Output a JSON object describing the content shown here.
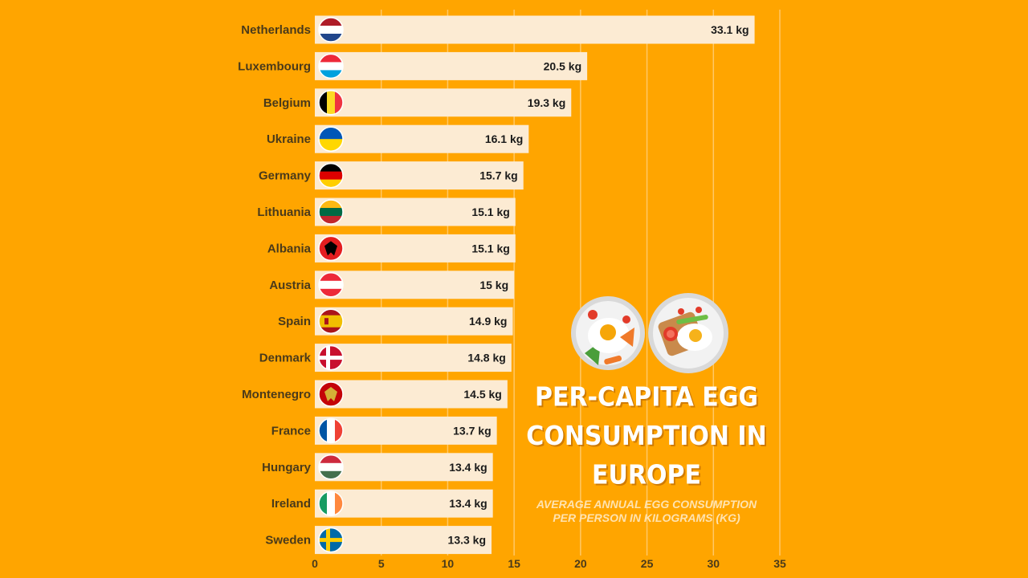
{
  "chart_data": {
    "type": "bar",
    "orientation": "horizontal",
    "title": "PER-CAPITA EGG CONSUMPTION IN EUROPE",
    "subtitle": "AVERAGE ANNUAL EGG CONSUMPTION PER PERSON IN KILOGRAMS (KG)",
    "categories": [
      "Netherlands",
      "Luxembourg",
      "Belgium",
      "Ukraine",
      "Germany",
      "Lithuania",
      "Albania",
      "Austria",
      "Spain",
      "Denmark",
      "Montenegro",
      "France",
      "Hungary",
      "Ireland",
      "Sweden"
    ],
    "values": [
      33.1,
      20.5,
      19.3,
      16.1,
      15.7,
      15.1,
      15.1,
      15,
      14.9,
      14.8,
      14.5,
      13.7,
      13.4,
      13.4,
      13.3
    ],
    "value_labels": [
      "33.1 kg",
      "20.5 kg",
      "19.3 kg",
      "16.1 kg",
      "15.7 kg",
      "15.1 kg",
      "15.1 kg",
      "15 kg",
      "14.9 kg",
      "14.8 kg",
      "14.5 kg",
      "13.7 kg",
      "13.4 kg",
      "13.4 kg",
      "13.3 kg"
    ],
    "xlim": [
      0,
      35
    ],
    "xticks": [
      0,
      5,
      10,
      15,
      20,
      25,
      30,
      35
    ],
    "xtick_labels": [
      "0",
      "5",
      "10",
      "15",
      "20",
      "25",
      "30",
      "35"
    ],
    "grid": true,
    "legend": "none"
  },
  "colors": {
    "background": "#FFA500",
    "bar": "#FCEBD3",
    "grid": "#FFC766"
  },
  "flags": [
    {
      "country": "Netherlands",
      "icon": "netherlands-flag-icon",
      "type": "h",
      "colors": [
        "#AE1C28",
        "#FFFFFF",
        "#21468B"
      ]
    },
    {
      "country": "Luxembourg",
      "icon": "luxembourg-flag-icon",
      "type": "h",
      "colors": [
        "#ED2939",
        "#FFFFFF",
        "#00A1DE"
      ]
    },
    {
      "country": "Belgium",
      "icon": "belgium-flag-icon",
      "type": "v",
      "colors": [
        "#000000",
        "#FDDA24",
        "#EF3340"
      ]
    },
    {
      "country": "Ukraine",
      "icon": "ukraine-flag-icon",
      "type": "h",
      "colors": [
        "#0057B7",
        "#FFD700"
      ]
    },
    {
      "country": "Germany",
      "icon": "germany-flag-icon",
      "type": "h",
      "colors": [
        "#000000",
        "#DD0000",
        "#FFCE00"
      ]
    },
    {
      "country": "Lithuania",
      "icon": "lithuania-flag-icon",
      "type": "h",
      "colors": [
        "#FDB913",
        "#006A44",
        "#C1272D"
      ]
    },
    {
      "country": "Albania",
      "icon": "albania-flag-icon",
      "type": "emblem",
      "colors": [
        "#E41E20",
        "#000000"
      ]
    },
    {
      "country": "Austria",
      "icon": "austria-flag-icon",
      "type": "h",
      "colors": [
        "#ED2939",
        "#FFFFFF",
        "#ED2939"
      ]
    },
    {
      "country": "Spain",
      "icon": "spain-flag-icon",
      "type": "h121",
      "colors": [
        "#AA151B",
        "#F1BF00",
        "#AA151B"
      ]
    },
    {
      "country": "Denmark",
      "icon": "denmark-flag-icon",
      "type": "cross",
      "colors": [
        "#C8102E",
        "#FFFFFF"
      ]
    },
    {
      "country": "Montenegro",
      "icon": "montenegro-flag-icon",
      "type": "emblem",
      "colors": [
        "#C40308",
        "#D4AF37"
      ]
    },
    {
      "country": "France",
      "icon": "france-flag-icon",
      "type": "v",
      "colors": [
        "#0055A4",
        "#FFFFFF",
        "#EF4135"
      ]
    },
    {
      "country": "Hungary",
      "icon": "hungary-flag-icon",
      "type": "h",
      "colors": [
        "#CD2A3E",
        "#FFFFFF",
        "#436F4D"
      ]
    },
    {
      "country": "Ireland",
      "icon": "ireland-flag-icon",
      "type": "v",
      "colors": [
        "#169B62",
        "#FFFFFF",
        "#FF883E"
      ]
    },
    {
      "country": "Sweden",
      "icon": "sweden-flag-icon",
      "type": "cross",
      "colors": [
        "#006AA7",
        "#FECC00"
      ]
    }
  ],
  "decor": {
    "plate_icons": [
      "egg-plate-icon",
      "egg-toast-plate-icon"
    ]
  }
}
